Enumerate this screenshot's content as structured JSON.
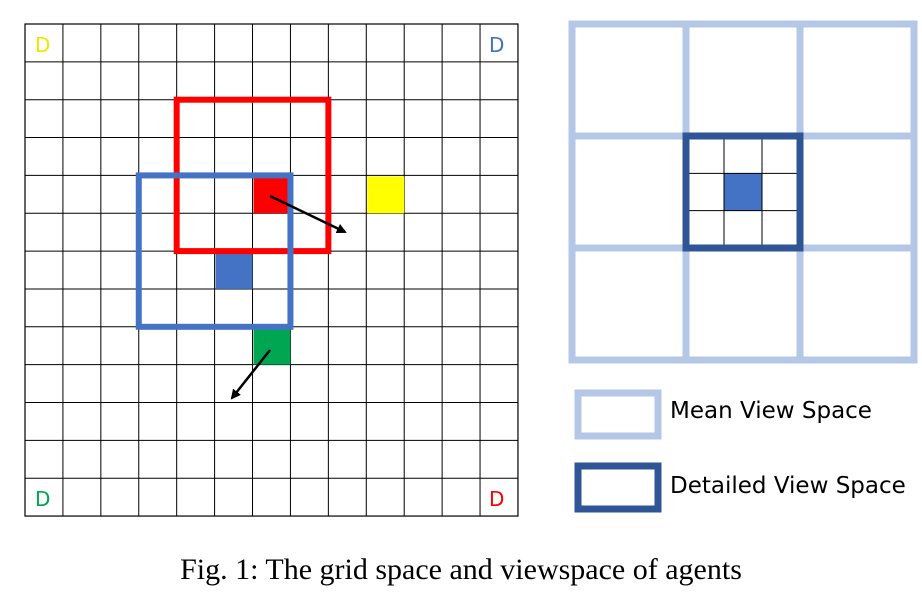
{
  "caption": "Fig. 1: The grid space and viewspace of agents",
  "grid": {
    "rows": 13,
    "cols": 13,
    "depots": [
      {
        "label": "D",
        "row": 0,
        "col": 0,
        "color": "#f2e600"
      },
      {
        "label": "D",
        "row": 0,
        "col": 12,
        "color": "#4472c4"
      },
      {
        "label": "D",
        "row": 12,
        "col": 0,
        "color": "#00a651"
      },
      {
        "label": "D",
        "row": 12,
        "col": 12,
        "color": "#ff0000"
      }
    ],
    "agents": [
      {
        "name": "red",
        "row": 4,
        "col": 6,
        "color": "#ff0000"
      },
      {
        "name": "yellow",
        "row": 4,
        "col": 9,
        "color": "#ffff00"
      },
      {
        "name": "blue",
        "row": 6,
        "col": 5,
        "color": "#4472c4"
      },
      {
        "name": "green",
        "row": 8,
        "col": 6,
        "color": "#00a651"
      }
    ],
    "view_boxes": [
      {
        "name": "red",
        "row_from": 2,
        "row_to": 6,
        "col_from": 4,
        "col_to": 8,
        "color": "#ff0000"
      },
      {
        "name": "blue",
        "row_from": 4,
        "row_to": 8,
        "col_from": 3,
        "col_to": 7,
        "color": "#4472c4"
      }
    ]
  },
  "viewspace": {
    "mean_color": "#b4c7e7",
    "detailed_color": "#2f5597",
    "center_cell_color": "#4472c4"
  },
  "legend": {
    "mean_label": "Mean View Space",
    "detailed_label": "Detailed View Space"
  }
}
